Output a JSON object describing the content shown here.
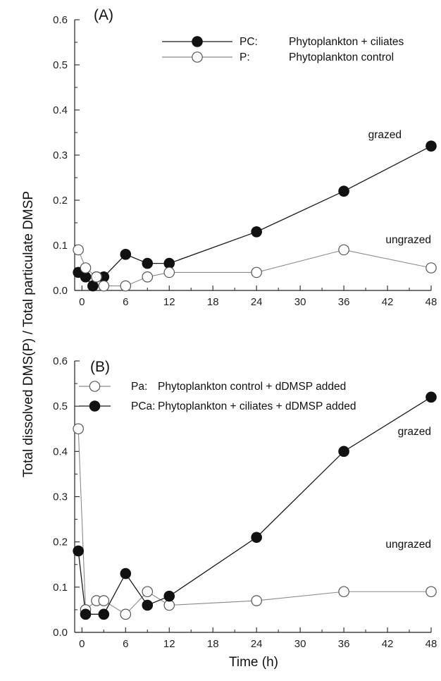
{
  "figure": {
    "ylabel": "Total dissolved DMS(P) / Total particulate DMSP",
    "xlabel": "Time (h)"
  },
  "chart_data": [
    {
      "type": "line",
      "panel_label": "(A)",
      "xlim": [
        -1,
        48
      ],
      "ylim": [
        0,
        0.6
      ],
      "x_ticks": [
        "0",
        "6",
        "12",
        "18",
        "24",
        "30",
        "36",
        "42",
        "48"
      ],
      "y_ticks": [
        "0.0",
        "0.1",
        "0.2",
        "0.3",
        "0.4",
        "0.5",
        "0.6"
      ],
      "legend_position": "top-right",
      "series": [
        {
          "name": "PC: Phytoplankton + ciliates",
          "legend_code": "PC:",
          "legend_text": "Phytoplankton + ciliates",
          "marker": "filled",
          "x": [
            -0.5,
            0.5,
            1.5,
            2,
            3,
            6,
            9,
            12,
            24,
            36,
            48
          ],
          "y": [
            0.04,
            0.03,
            0.01,
            0.03,
            0.03,
            0.08,
            0.06,
            0.06,
            0.13,
            0.22,
            0.32
          ]
        },
        {
          "name": "P: Phytoplankton control",
          "legend_code": "P:",
          "legend_text": "Phytoplankton control",
          "marker": "open",
          "x": [
            -0.5,
            0.5,
            2,
            3,
            6,
            9,
            12,
            24,
            36,
            48
          ],
          "y": [
            0.09,
            0.05,
            0.03,
            0.01,
            0.01,
            0.03,
            0.04,
            0.04,
            0.09,
            0.05
          ]
        }
      ],
      "annotations": [
        "grazed",
        "ungrazed"
      ]
    },
    {
      "type": "line",
      "panel_label": "(B)",
      "xlim": [
        -1,
        48
      ],
      "ylim": [
        0,
        0.6
      ],
      "x_ticks": [
        "0",
        "6",
        "12",
        "18",
        "24",
        "30",
        "36",
        "42",
        "48"
      ],
      "y_ticks": [
        "0.0",
        "0.1",
        "0.2",
        "0.3",
        "0.4",
        "0.5",
        "0.6"
      ],
      "legend_position": "top-left",
      "series": [
        {
          "name": "Pa: Phytoplankton control + dDMSP added",
          "legend_code": "Pa:",
          "legend_text": "Phytoplankton control + dDMSP added",
          "marker": "open",
          "x": [
            -0.5,
            0.5,
            2,
            3,
            6,
            9,
            12,
            24,
            36,
            48
          ],
          "y": [
            0.45,
            0.05,
            0.07,
            0.07,
            0.04,
            0.09,
            0.06,
            0.07,
            0.09,
            0.09
          ]
        },
        {
          "name": "PCa: Phytoplankton + ciliates + dDMSP added",
          "legend_code": "PCa:",
          "legend_text": "Phytoplankton + ciliates + dDMSP added",
          "marker": "filled",
          "x": [
            -0.5,
            0.5,
            3,
            6,
            9,
            12,
            24,
            36,
            48
          ],
          "y": [
            0.18,
            0.04,
            0.04,
            0.13,
            0.06,
            0.08,
            0.21,
            0.4,
            0.52
          ]
        }
      ],
      "annotations": [
        "grazed",
        "ungrazed"
      ]
    }
  ]
}
